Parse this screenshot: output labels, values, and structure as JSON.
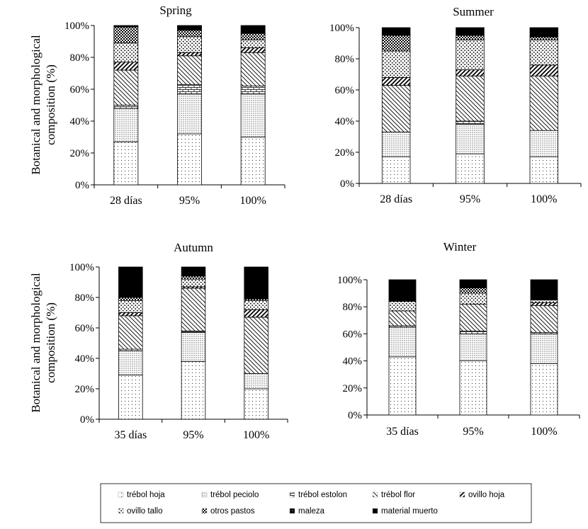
{
  "legend": [
    {
      "label": "trébol hoja",
      "pattern": "fine-dots"
    },
    {
      "label": "trébol peciolo",
      "pattern": "dense-dots"
    },
    {
      "label": "trébol estolon",
      "pattern": "bricks"
    },
    {
      "label": "trébol flor",
      "pattern": "diag-back"
    },
    {
      "label": "ovillo hoja",
      "pattern": "diag-fwd-thick"
    },
    {
      "label": "ovillo tallo",
      "pattern": "large-dots"
    },
    {
      "label": "otros pastos",
      "pattern": "checker"
    },
    {
      "label": "maleza",
      "pattern": "black-dots"
    },
    {
      "label": "material muerto",
      "pattern": "solid-black"
    }
  ],
  "chart_data": [
    {
      "type": "bar",
      "stacked": true,
      "title": "Spring",
      "ylabel": "Botanical and morphological composition (%)",
      "ylim": [
        0,
        100
      ],
      "yticks": [
        "0%",
        "20%",
        "40%",
        "60%",
        "80%",
        "100%"
      ],
      "categories": [
        "28 días",
        "95%",
        "100%"
      ],
      "series": [
        {
          "name": "trébol hoja",
          "values": [
            27,
            32,
            30
          ]
        },
        {
          "name": "trébol peciolo",
          "values": [
            21,
            25,
            27
          ]
        },
        {
          "name": "trébol estolon",
          "values": [
            2,
            6,
            5
          ]
        },
        {
          "name": "trébol flor",
          "values": [
            22,
            18,
            21
          ]
        },
        {
          "name": "ovillo hoja",
          "values": [
            5,
            2,
            3
          ]
        },
        {
          "name": "ovillo tallo",
          "values": [
            12,
            10,
            5
          ]
        },
        {
          "name": "otros pastos",
          "values": [
            10,
            4,
            4
          ]
        },
        {
          "name": "maleza",
          "values": [
            0,
            0,
            0
          ]
        },
        {
          "name": "material muerto",
          "values": [
            1,
            3,
            5
          ]
        }
      ]
    },
    {
      "type": "bar",
      "stacked": true,
      "title": "Summer",
      "ylim": [
        0,
        100
      ],
      "yticks": [
        "0%",
        "20%",
        "40%",
        "60%",
        "80%",
        "100%"
      ],
      "categories": [
        "28 días",
        "95%",
        "100%"
      ],
      "series": [
        {
          "name": "trébol hoja",
          "values": [
            17,
            19,
            17
          ]
        },
        {
          "name": "trébol peciolo",
          "values": [
            16,
            19,
            17
          ]
        },
        {
          "name": "trébol estolon",
          "values": [
            0,
            2,
            0
          ]
        },
        {
          "name": "trébol flor",
          "values": [
            30,
            29,
            35
          ]
        },
        {
          "name": "ovillo hoja",
          "values": [
            5,
            4,
            7
          ]
        },
        {
          "name": "ovillo tallo",
          "values": [
            17,
            19,
            16
          ]
        },
        {
          "name": "otros pastos",
          "values": [
            10,
            3,
            2
          ]
        },
        {
          "name": "maleza",
          "values": [
            0,
            0,
            0
          ]
        },
        {
          "name": "material muerto",
          "values": [
            5,
            5,
            6
          ]
        }
      ]
    },
    {
      "type": "bar",
      "stacked": true,
      "title": "Autumn",
      "ylabel": "Botanical and morphological composition (%)",
      "ylim": [
        0,
        100
      ],
      "yticks": [
        "0%",
        "20%",
        "40%",
        "60%",
        "80%",
        "100%"
      ],
      "categories": [
        "35 días",
        "95%",
        "100%"
      ],
      "series": [
        {
          "name": "trébol hoja",
          "values": [
            29,
            38,
            20
          ]
        },
        {
          "name": "trébol peciolo",
          "values": [
            16,
            19,
            10
          ]
        },
        {
          "name": "trébol estolon",
          "values": [
            1,
            1,
            0
          ]
        },
        {
          "name": "trébol flor",
          "values": [
            22,
            28,
            37
          ]
        },
        {
          "name": "ovillo hoja",
          "values": [
            2,
            1,
            5
          ]
        },
        {
          "name": "ovillo tallo",
          "values": [
            8,
            5,
            6
          ]
        },
        {
          "name": "otros pastos",
          "values": [
            2,
            2,
            1
          ]
        },
        {
          "name": "maleza",
          "values": [
            0,
            0,
            0
          ]
        },
        {
          "name": "material muerto",
          "values": [
            20,
            6,
            21
          ]
        }
      ]
    },
    {
      "type": "bar",
      "stacked": true,
      "title": "Winter",
      "ylim": [
        0,
        100
      ],
      "yticks": [
        "0%",
        "20%",
        "40%",
        "60%",
        "80%",
        "100%"
      ],
      "categories": [
        "35 días",
        "95%",
        "100%"
      ],
      "series": [
        {
          "name": "trébol hoja",
          "values": [
            43,
            40,
            38
          ]
        },
        {
          "name": "trébol peciolo",
          "values": [
            22,
            20,
            22
          ]
        },
        {
          "name": "trébol estolon",
          "values": [
            1,
            2,
            1
          ]
        },
        {
          "name": "trébol flor",
          "values": [
            11,
            20,
            20
          ]
        },
        {
          "name": "ovillo hoja",
          "values": [
            0,
            0,
            2
          ]
        },
        {
          "name": "ovillo tallo",
          "values": [
            7,
            8,
            2
          ]
        },
        {
          "name": "otros pastos",
          "values": [
            0,
            4,
            0
          ]
        },
        {
          "name": "maleza",
          "values": [
            0,
            0,
            0
          ]
        },
        {
          "name": "material muerto",
          "values": [
            16,
            6,
            15
          ]
        }
      ]
    }
  ]
}
